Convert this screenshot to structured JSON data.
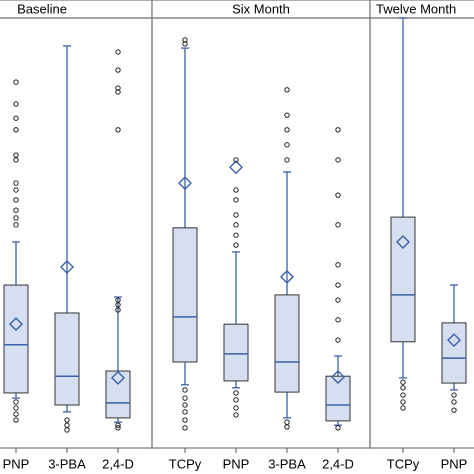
{
  "chart_data": {
    "type": "box",
    "ylim": [
      0,
      100
    ],
    "box_color": "#d6dff0",
    "line_color": "#3a62a8",
    "panels": [
      {
        "title": "Baseline",
        "boxes": [
          {
            "label": "PNP",
            "whislo": 11.6,
            "q1": 12.8,
            "med": 24.0,
            "q3": 37.9,
            "whishi": 47.9,
            "mean": 28.8,
            "fliers": [
              85.1,
              80.0,
              76.7,
              74.0,
              68.1,
              67.0,
              61.6,
              60.0,
              57.7,
              55.3,
              53.5,
              51.9,
              10.7,
              9.3,
              7.9,
              6.5
            ]
          },
          {
            "label": "3-PBA",
            "whislo": 8.4,
            "q1": 10.0,
            "med": 16.7,
            "q3": 31.4,
            "whishi": 93.5,
            "mean": 42.1,
            "fliers": [
              6.5,
              5.3,
              4.2
            ]
          },
          {
            "label": "2,4-D",
            "whislo": 6.0,
            "q1": 7.0,
            "med": 10.5,
            "q3": 17.9,
            "whishi": 35.1,
            "mean": 16.3,
            "fliers": [
              92.1,
              87.9,
              83.7,
              82.8,
              74.0,
              34.4,
              33.3,
              32.1,
              5.3,
              4.7
            ]
          }
        ]
      },
      {
        "title": "Six Month",
        "boxes": [
          {
            "label": "TCPy",
            "whislo": 14.7,
            "q1": 20.0,
            "med": 30.5,
            "q3": 51.2,
            "whishi": 93.0,
            "mean": 61.6,
            "fliers": [
              94.9,
              94.0,
              13.5,
              11.6,
              10.0,
              8.4,
              6.5,
              4.7
            ]
          },
          {
            "label": "PNP",
            "whislo": 14.0,
            "q1": 15.6,
            "med": 21.9,
            "q3": 28.8,
            "whishi": 45.6,
            "mean": 65.3,
            "fliers": [
              67.0,
              60.0,
              57.7,
              54.2,
              51.9,
              49.5,
              47.2,
              12.8,
              11.2,
              9.3,
              7.7
            ]
          },
          {
            "label": "3-PBA",
            "whislo": 7.0,
            "q1": 13.0,
            "med": 20.0,
            "q3": 35.6,
            "whishi": 64.2,
            "mean": 39.8,
            "fliers": [
              83.3,
              77.4,
              74.0,
              70.5,
              67.0,
              6.0,
              4.9
            ]
          },
          {
            "label": "2,4-D",
            "whislo": 5.3,
            "q1": 6.3,
            "med": 10.0,
            "q3": 16.7,
            "whishi": 21.4,
            "mean": 16.5,
            "fliers": [
              74.0,
              67.0,
              58.8,
              51.9,
              42.6,
              37.9,
              34.4,
              29.8,
              25.1,
              4.7
            ]
          }
        ]
      },
      {
        "title": "Twelve Month",
        "boxes": [
          {
            "label": "TCPy",
            "whislo": 16.3,
            "q1": 24.7,
            "med": 35.6,
            "q3": 53.7,
            "whishi": 100,
            "mean": 47.9,
            "fliers": [
              15.3,
              14.0,
              12.3,
              10.7,
              9.3
            ]
          },
          {
            "label": "PNP",
            "whislo": 13.5,
            "q1": 15.1,
            "med": 20.9,
            "q3": 29.1,
            "whishi": 37.9,
            "mean": 25.1,
            "fliers": [
              12.3,
              10.7,
              8.8
            ]
          }
        ]
      }
    ]
  }
}
